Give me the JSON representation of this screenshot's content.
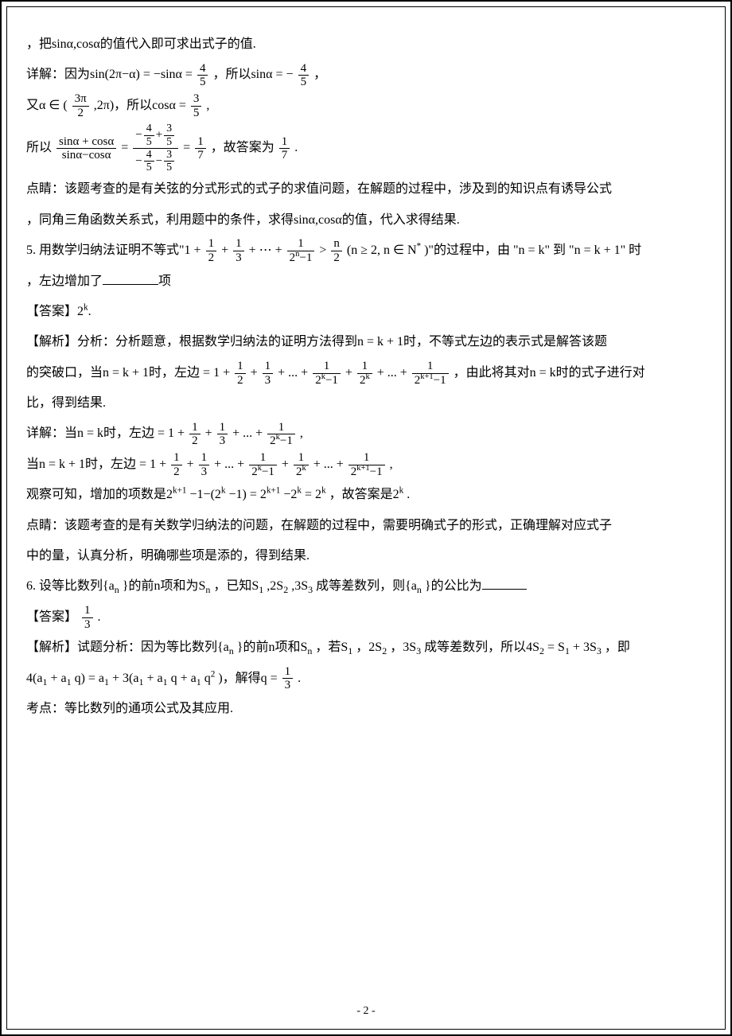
{
  "page_number": "- 2 -",
  "lines": {
    "l1": "，把sinα,cosα的值代入即可求出式子的值.",
    "l2a": "详解：因为sin(2π−α) = −sinα = ",
    "l2b": "，所以sinα = −",
    "l2c": "，",
    "l3a": "又α ∈ (",
    "l3b": ",2π)，所以cosα = ",
    "l3c": ",",
    "l4a": "所以",
    "l4b": " = ",
    "l4c": " = ",
    "l4d": "，故答案为",
    "l4e": ".",
    "l5": "点睛：该题考查的是有关弦的分式形式的式子的求值问题，在解题的过程中，涉及到的知识点有诱导公式",
    "l6": "，同角三角函数关系式，利用题中的条件，求得sinα,cosα的值，代入求得结果.",
    "q5a": "5. 用数学归纳法证明不等式\"1 + ",
    "q5b": " + ",
    "q5c": " + ⋯ + ",
    "q5d": " > ",
    "q5e": "(n ≥ 2, n ∈ N",
    "q5f": ")\"的过程中，由 \"n = k\" 到 \"n = k + 1\" 时",
    "q5g": "，左边增加了",
    "q5h": "项",
    "a5": "【答案】2",
    "a5exp": "k",
    "a5dot": ".",
    "p5a": "【解析】分析：分析题意，根据数学归纳法的证明方法得到n = k + 1时，不等式左边的表示式是解答该题",
    "p5b": "的突破口，当n = k + 1时，左边 = 1 + ",
    "p5c": " + ",
    "p5d": " + ... + ",
    "p5e": " + ",
    "p5f": " + ... + ",
    "p5g": "，由此将其对n = k时的式子进行对",
    "p5h": "比，得到结果.",
    "d5a": "详解：当n = k时，左边 = 1 + ",
    "d5b": " + ",
    "d5c": " + ... + ",
    "d5d": ",",
    "d5e": "当n = k + 1时，左边 = 1 + ",
    "d5f": " + ",
    "d5g": " + ... + ",
    "d5h": " + ",
    "d5i": " + ... + ",
    "d5j": ",",
    "o5a": "观察可知，增加的项数是2",
    "o5b": "−1−(2",
    "o5c": "−1) = 2",
    "o5d": "−2",
    "o5e": " = 2",
    "o5f": "，故答案是2",
    "o5g": ".",
    "c5a": "点睛：该题考查的是有关数学归纳法的问题，在解题的过程中，需要明确式子的形式，正确理解对应式子",
    "c5b": "中的量，认真分析，明确哪些项是添的，得到结果.",
    "q6a": "6.  设等比数列{a",
    "q6b": "}的前n项和为S",
    "q6c": "，已知S",
    "q6d": ",2S",
    "q6e": ",3S",
    "q6f": "成等差数列，则{a",
    "q6g": "}的公比为",
    "a6": "【答案】",
    "a6dot": ".",
    "p6a": "【解析】试题分析：因为等比数列{a",
    "p6b": "}的前n项和S",
    "p6c": "，若S",
    "p6d": "，2S",
    "p6e": "，3S",
    "p6f": "成等差数列，所以4S",
    "p6g": " = S",
    "p6h": " + 3S",
    "p6i": "，即",
    "p6j": "4(a",
    "p6k": " + a",
    "p6l": "q) = a",
    "p6m": " + 3(a",
    "p6n": " + a",
    "p6o": "q + a",
    "p6p": "q",
    "p6q": ")，解得q = ",
    "p6r": ".",
    "p6s": "考点：等比数列的通项公式及其应用."
  },
  "frac": {
    "f45n": "4",
    "f45d": "5",
    "fn45n": "4",
    "fn45d": "5",
    "f3pi2n": "3π",
    "f3pi2d": "2",
    "f35n": "3",
    "f35d": "5",
    "lhsN": "sinα + cosα",
    "lhsD": "sinα−cosα",
    "mNa": "4",
    "mNb": "5",
    "mNc": "3",
    "mNd": "5",
    "mDa": "4",
    "mDb": "5",
    "mDc": "3",
    "mDd": "5",
    "f17n": "1",
    "f17d": "7",
    "f12n": "1",
    "f12d": "2",
    "f13n_a": "1",
    "f13d_a": "3",
    "f2n1n": "1",
    "f2n1d": "2",
    "f2n1e": "n",
    "f2n1m": "−1",
    "fn2n": "n",
    "fn2d": "2",
    "f2k1n": "1",
    "f2k1d": "2",
    "f2k1e": "k",
    "f2k1m": "−1",
    "f2kn": "1",
    "f2kd": "2",
    "f2ke": "k",
    "f2kp1n": "1",
    "f2kp1d": "2",
    "f2kp1e": "k+1",
    "f2kp1m": "−1",
    "f13n": "1",
    "f13d": "3"
  },
  "exp": {
    "star": "*",
    "k": "k",
    "kp1": "k+1",
    "two": "2"
  },
  "sub": {
    "n": "n",
    "one": "1",
    "two2": "2",
    "three": "3"
  },
  "colors": {
    "text": "#000000",
    "bg": "#ffffff",
    "border": "#000000"
  }
}
